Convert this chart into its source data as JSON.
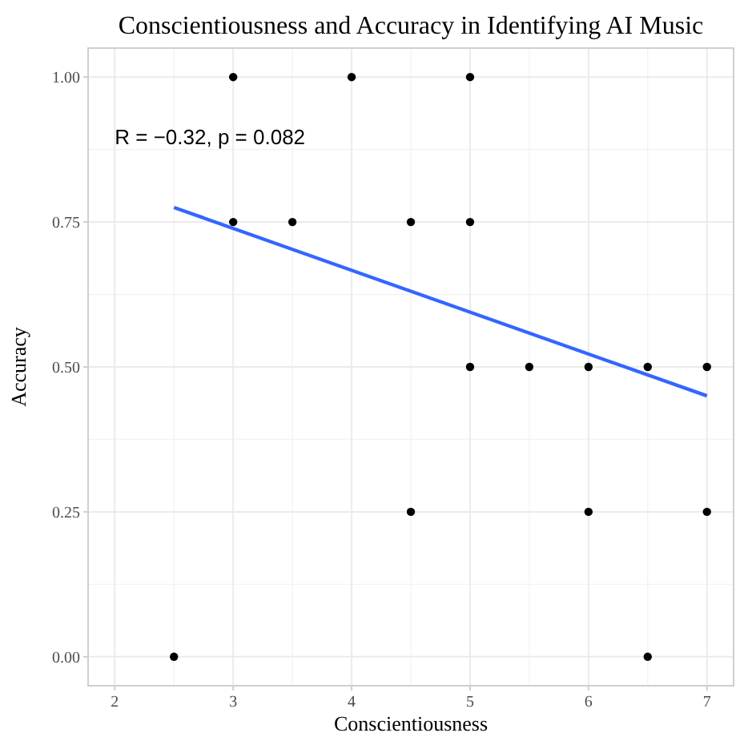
{
  "chart_data": {
    "type": "scatter",
    "title": "Conscientiousness and Accuracy in Identifying AI Music",
    "xlabel": "Conscientiousness",
    "ylabel": "Accuracy",
    "annotations": [
      "R = −0.32, p = 0.082"
    ],
    "xlim": [
      1.775,
      7.225
    ],
    "ylim": [
      -0.05,
      1.05
    ],
    "xticks": [
      2,
      3,
      4,
      5,
      6,
      7
    ],
    "yticks": [
      {
        "value": 0,
        "label": "0.00"
      },
      {
        "value": 0.25,
        "label": "0.25"
      },
      {
        "value": 0.5,
        "label": "0.50"
      },
      {
        "value": 0.75,
        "label": "0.75"
      },
      {
        "value": 1,
        "label": "1.00"
      }
    ],
    "grid": true,
    "series": [
      {
        "marker": "circle",
        "color": "#000000",
        "x": [
          2.5,
          3,
          3,
          3.5,
          4,
          4.5,
          4.5,
          5,
          5,
          5,
          5.5,
          6,
          6,
          6.5,
          6.5,
          7,
          7
        ],
        "values": [
          0,
          1,
          0.75,
          0.75,
          1,
          0.75,
          0.25,
          1,
          0.75,
          0.5,
          0.5,
          0.5,
          0.25,
          0.5,
          0,
          0.5,
          0.25
        ]
      },
      {
        "type": "line",
        "color": "#3366ff",
        "x": [
          2.5,
          7
        ],
        "values": [
          0.775,
          0.45
        ]
      }
    ]
  }
}
